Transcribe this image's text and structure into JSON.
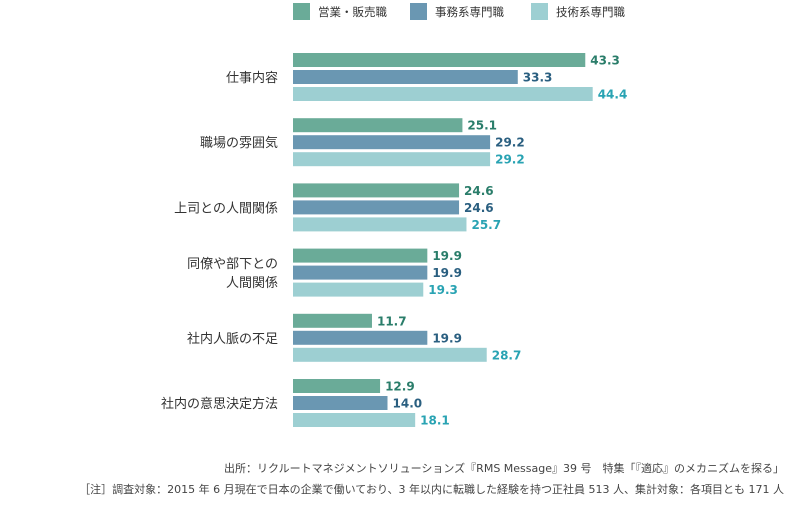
{
  "chart_data": {
    "type": "bar",
    "orientation": "horizontal",
    "categories": [
      [
        "仕事内容"
      ],
      [
        "職場の雰囲気"
      ],
      [
        "上司との人間関係"
      ],
      [
        "同僚や部下との",
        "人間関係"
      ],
      [
        "社内人脈の不足"
      ],
      [
        "社内の意思決定方法"
      ]
    ],
    "series": [
      {
        "name": "営業・販売職",
        "color": "#6aab98",
        "label_color": "#2a7d6a",
        "values": [
          43.3,
          25.1,
          24.6,
          19.9,
          11.7,
          12.9
        ]
      },
      {
        "name": "事務系専門職",
        "color": "#6a97b2",
        "label_color": "#2a5f80",
        "values": [
          33.3,
          29.2,
          24.6,
          19.9,
          19.9,
          14.0
        ]
      },
      {
        "name": "技術系専門職",
        "color": "#9dcfd2",
        "label_color": "#29a3b3",
        "values": [
          44.4,
          29.2,
          25.7,
          19.3,
          28.7,
          18.1
        ]
      }
    ],
    "legend_position": "top",
    "grid": false,
    "xlim": [
      0,
      50
    ]
  },
  "source_note": "出所：リクルートマネジメントソリューションズ『RMS Message』39 号　特集「『適応』のメカニズムを探る」",
  "footnote": "［注］調査対象：2015 年 6 月現在で日本の企業で働いており、3 年以内に転職した経験を持つ正社員 513 人、集計対象：各項目とも 171 人"
}
